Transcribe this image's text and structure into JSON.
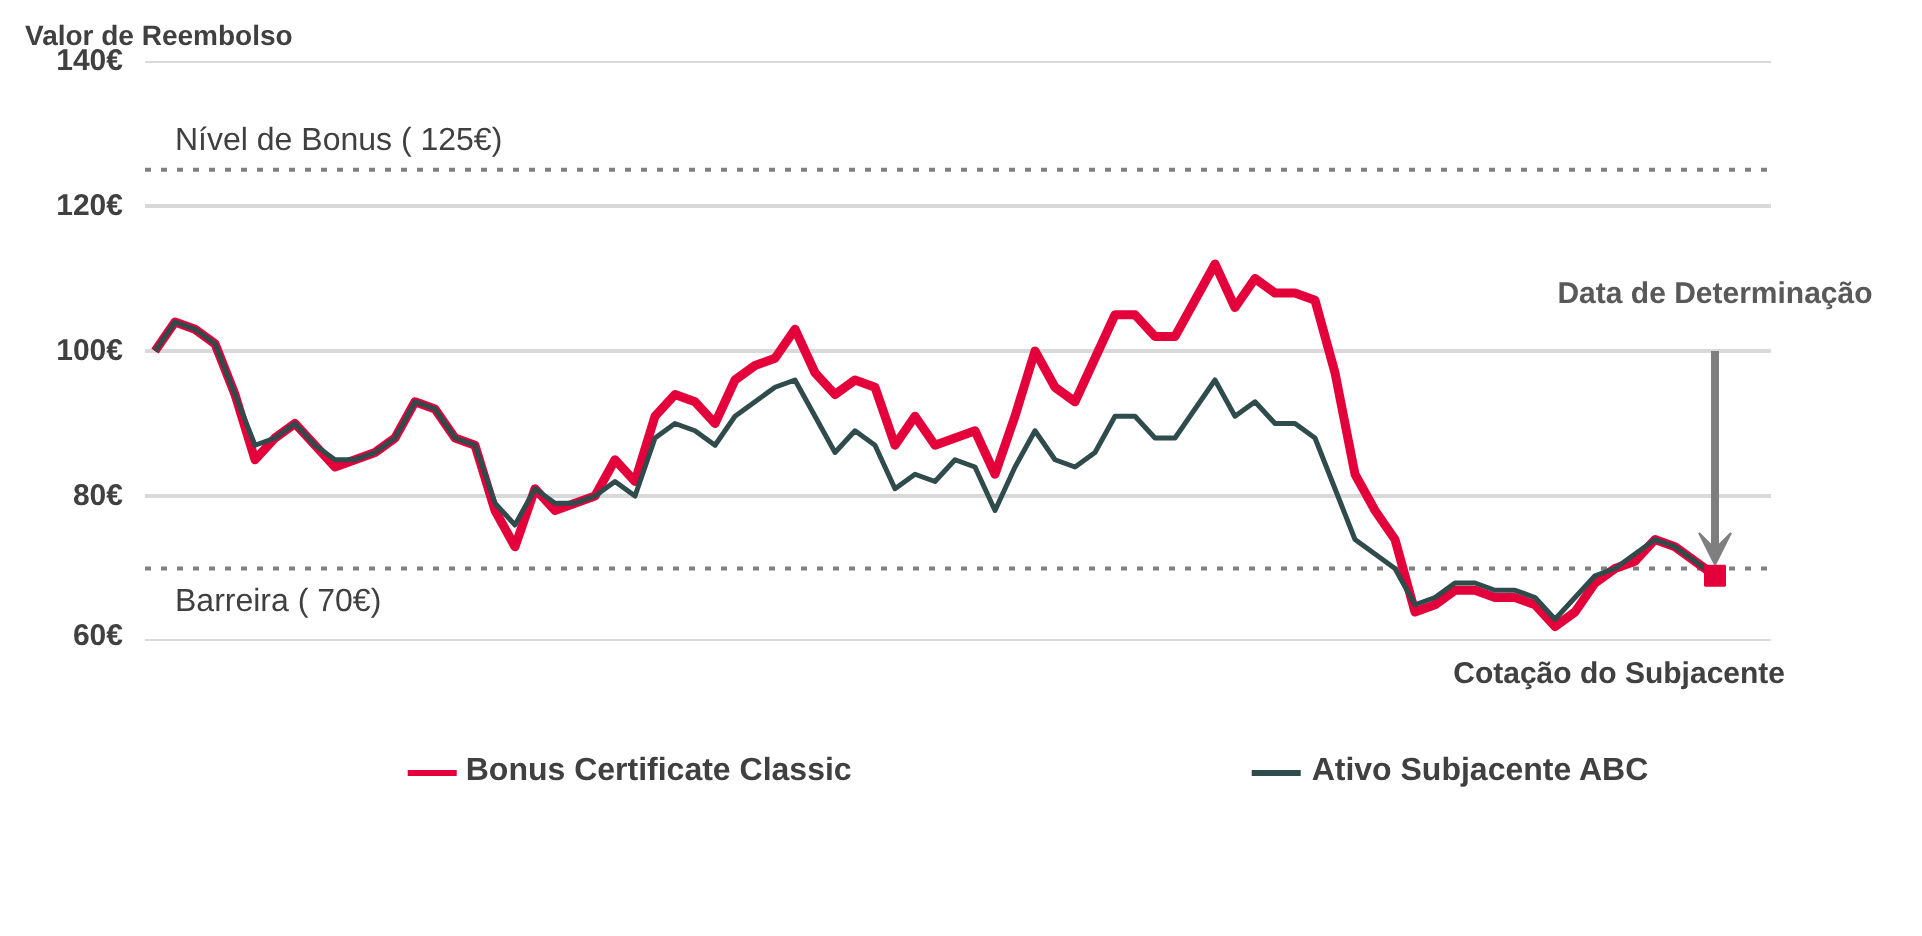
{
  "chart_data": {
    "type": "line",
    "ylabel": "Valor de Reembolso",
    "xlabel": "Cotação do Subjacente",
    "categories": [
      null,
      null,
      null,
      null,
      null,
      null,
      null,
      null,
      null,
      null,
      null,
      null,
      null,
      null,
      null,
      null,
      null,
      null,
      null,
      null,
      null,
      null,
      null,
      null,
      null,
      null,
      null,
      null,
      null,
      null,
      null,
      null,
      null,
      null,
      null,
      null,
      null,
      null,
      null,
      null,
      null,
      null,
      null,
      null,
      null,
      null,
      null,
      null,
      null,
      null,
      null,
      null,
      null,
      null,
      null,
      null,
      null,
      null,
      null,
      null,
      null,
      null,
      null,
      null,
      null,
      null,
      null,
      null,
      null,
      null,
      null,
      null,
      null,
      null,
      null,
      null,
      null,
      null,
      null
    ],
    "series": [
      {
        "name": "Bonus Certificate Classic",
        "color": "#e4003a",
        "values": [
          100,
          104,
          103,
          101,
          94,
          85,
          88,
          90,
          87,
          84,
          85,
          86,
          88,
          93,
          92,
          88,
          87,
          78,
          73,
          81,
          78,
          79,
          80,
          85,
          82,
          91,
          94,
          93,
          90,
          96,
          98,
          99,
          103,
          97,
          94,
          96,
          95,
          87,
          91,
          87,
          88,
          89,
          83,
          91,
          100,
          95,
          93,
          99,
          105,
          105,
          102,
          102,
          107,
          112,
          106,
          110,
          108,
          108,
          107,
          97,
          83,
          78,
          74,
          64,
          65,
          67,
          67,
          66,
          66,
          65,
          62,
          64,
          68,
          70,
          71,
          74,
          73,
          71,
          69
        ]
      },
      {
        "name": "Ativo Subjacente ABC",
        "color": "#2f4b4b",
        "values": [
          100,
          104,
          103,
          101,
          94,
          87,
          88,
          90,
          87,
          85,
          85,
          86,
          88,
          93,
          92,
          88,
          87,
          79,
          76,
          81,
          79,
          79,
          80,
          82,
          80,
          88,
          90,
          89,
          87,
          91,
          93,
          95,
          96,
          91,
          86,
          89,
          87,
          81,
          83,
          82,
          85,
          84,
          78,
          84,
          89,
          85,
          84,
          86,
          91,
          91,
          88,
          88,
          92,
          96,
          91,
          93,
          90,
          90,
          88,
          81,
          74,
          72,
          70,
          65,
          66,
          68,
          68,
          67,
          67,
          66,
          63,
          66,
          69,
          70,
          72,
          74,
          73,
          71,
          69
        ]
      },
      {
        "type": "scatter",
        "marker": "square",
        "color": "#e4003a",
        "values": [
          null,
          null,
          null,
          null,
          null,
          null,
          null,
          null,
          null,
          null,
          null,
          null,
          null,
          null,
          null,
          null,
          null,
          null,
          null,
          null,
          null,
          null,
          null,
          null,
          null,
          null,
          null,
          null,
          null,
          null,
          null,
          null,
          null,
          null,
          null,
          null,
          null,
          null,
          null,
          null,
          null,
          null,
          null,
          null,
          null,
          null,
          null,
          null,
          null,
          null,
          null,
          null,
          null,
          null,
          null,
          null,
          null,
          null,
          null,
          null,
          null,
          null,
          null,
          null,
          null,
          null,
          null,
          null,
          null,
          null,
          null,
          null,
          null,
          null,
          null,
          null,
          null,
          null,
          69
        ]
      }
    ],
    "ylim": [
      60,
      140
    ],
    "yticks": [
      {
        "value": 60,
        "label": "60€"
      },
      {
        "value": 80,
        "label": "80€"
      },
      {
        "value": 100,
        "label": "100€"
      },
      {
        "value": 120,
        "label": "120€"
      },
      {
        "value": 140,
        "label": "140€"
      }
    ],
    "ref_lines": [
      {
        "axis": "y",
        "value": 125,
        "label": "Nível de Bonus ( 125€)",
        "color": "#808080",
        "line_style": "dotted"
      },
      {
        "axis": "y",
        "value": 70,
        "label": "Barreira ( 70€)",
        "color": "#808080",
        "line_style": "dotted"
      }
    ],
    "annotations": [
      "Data de Determinação"
    ],
    "grid": "y",
    "legend": "bottom",
    "tick_labels": "y"
  }
}
